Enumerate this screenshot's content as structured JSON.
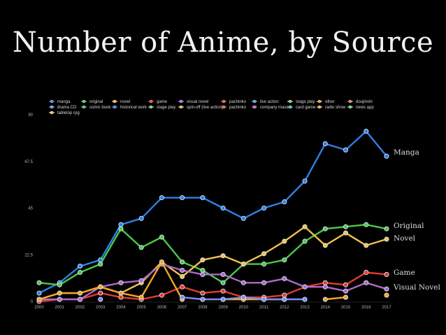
{
  "slide": {
    "title": "Number of Anime, by Source"
  },
  "chart_data": {
    "type": "line",
    "title": "Number of Anime, by Source",
    "x": [
      "2000",
      "2001",
      "2002",
      "2003",
      "2004",
      "2005",
      "2006",
      "2007",
      "2008",
      "2009",
      "2010",
      "2011",
      "2012",
      "2013",
      "2014",
      "2015",
      "2016",
      "2017"
    ],
    "ylim": [
      0,
      90
    ],
    "yticks": [
      "0",
      "22.5",
      "45",
      "67.5",
      "90"
    ],
    "grid": false,
    "legend_position": "top",
    "legend": [
      {
        "label": "manga",
        "color": "#2f7fe6"
      },
      {
        "label": "original",
        "color": "#4cc94c"
      },
      {
        "label": "novel",
        "color": "#f2c14e"
      },
      {
        "label": "game",
        "color": "#e33b2e"
      },
      {
        "label": "visual novel",
        "color": "#b067c9"
      },
      {
        "label": "pachinko",
        "color": "#d4502d"
      },
      {
        "label": "live action",
        "color": "#3aa8d8"
      },
      {
        "label": "stage play",
        "color": "#9ccc65"
      },
      {
        "label": "other",
        "color": "#f5a623"
      },
      {
        "label": "doujinshi",
        "color": "#e8803a"
      },
      {
        "label": "drama CD",
        "color": "#7c8cf0"
      },
      {
        "label": "comic book",
        "color": "#3fb58c"
      },
      {
        "label": "historical work",
        "color": "#3e6fd1"
      },
      {
        "label": "stage play",
        "color": "#7ecf62"
      },
      {
        "label": "spin-off (live action)",
        "color": "#e0c341"
      },
      {
        "label": "pachinko",
        "color": "#e2583a"
      },
      {
        "label": "company mascot",
        "color": "#c45ac0"
      },
      {
        "label": "card game",
        "color": "#45b3a0"
      },
      {
        "label": "radio show",
        "color": "#f0b43c"
      },
      {
        "label": "news app",
        "color": "#6fd08a"
      },
      {
        "label": "tabletop rpg",
        "color": "#f3c969"
      }
    ],
    "series": [
      {
        "name": "Manga",
        "color": "#2f7fe6",
        "values": [
          4,
          9,
          17,
          20,
          37,
          40,
          50,
          50,
          50,
          45,
          40,
          45,
          48,
          58,
          76,
          73,
          82,
          70
        ]
      },
      {
        "name": "Original",
        "color": "#4cc94c",
        "values": [
          9,
          8,
          14,
          18,
          35,
          26,
          31,
          19,
          15,
          9,
          18,
          18,
          20,
          29,
          35,
          36,
          37,
          35
        ]
      },
      {
        "name": "Novel",
        "color": "#f2c14e",
        "values": [
          1,
          4,
          4,
          7,
          4,
          9,
          19,
          12,
          20,
          22,
          18,
          23,
          29,
          36,
          27,
          33,
          27,
          30
        ]
      },
      {
        "name": "Game",
        "color": "#e33b2e",
        "values": [
          0,
          1,
          1,
          4,
          2,
          1,
          3,
          7,
          4,
          5,
          2,
          2,
          3,
          7,
          9,
          8,
          14,
          13
        ]
      },
      {
        "name": "Visual Novel",
        "color": "#b067c9",
        "values": [
          1,
          1,
          1,
          7,
          9,
          10,
          18,
          15,
          13,
          13,
          9,
          9,
          11,
          7,
          7,
          5,
          9,
          6
        ]
      },
      {
        "name": "",
        "color": "#f5a623",
        "values": [
          1,
          4,
          4,
          7,
          4,
          2,
          19,
          1,
          null,
          1,
          1,
          1,
          1,
          null,
          1,
          2,
          null,
          3
        ]
      },
      {
        "name": "",
        "color": "#7c8cf0",
        "values": [
          null,
          null,
          null,
          1,
          null,
          null,
          null,
          2,
          1,
          1,
          2,
          1,
          1,
          1,
          null,
          null,
          null,
          null
        ]
      }
    ],
    "end_labels": [
      "Manga",
      "Original",
      "Novel",
      "Game",
      "Visual Novel"
    ]
  }
}
